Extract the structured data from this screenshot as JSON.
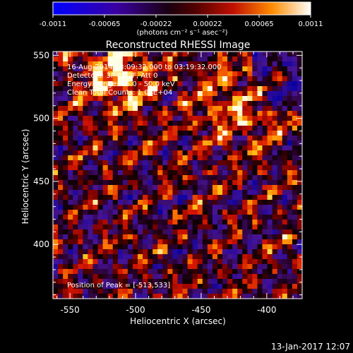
{
  "colorbar": {
    "ticks": [
      "-0.0011",
      "-0.00065",
      "-0.00022",
      "0.00022",
      "0.00065",
      "0.0011"
    ],
    "units": "(photons cm⁻² s⁻¹ asec⁻²)"
  },
  "chart_data": {
    "type": "heatmap",
    "title": "Reconstructed RHESSI Image",
    "xlabel": "Heliocentric X (arcsec)",
    "ylabel": "Heliocentric Y (arcsec)",
    "xlim": [
      -563,
      -373
    ],
    "ylim": [
      357,
      553
    ],
    "x_ticks": [
      -550,
      -500,
      -450,
      -400
    ],
    "y_ticks": [
      400,
      450,
      500,
      550
    ],
    "value_range": [
      -0.0011,
      0.0011
    ],
    "annotations": [
      "16-Aug-2014 03:09:32.000 to 03:19:32.000",
      "Detectors: 3F 8F 9F, Att 0",
      "Energy Range: 25.0 - 50.0 keV",
      "Clean    Total Counts: 1.03E+04"
    ],
    "peak_label": "Position of Peak = [-513,533]",
    "peak": [
      -513,
      533
    ]
  },
  "footer": {
    "timestamp": "13-Jan-2017 12:07"
  }
}
